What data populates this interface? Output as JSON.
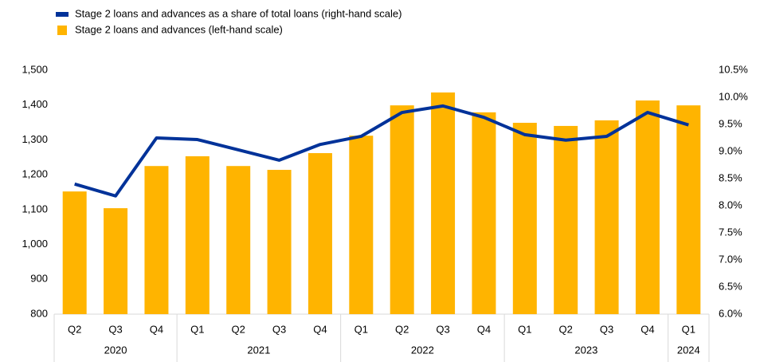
{
  "chart_data": {
    "type": "bar_line",
    "categories": [
      "Q2",
      "Q3",
      "Q4",
      "Q1",
      "Q2",
      "Q3",
      "Q4",
      "Q1",
      "Q2",
      "Q3",
      "Q4",
      "Q1",
      "Q2",
      "Q3",
      "Q4",
      "Q1"
    ],
    "year_groups": [
      {
        "label": "2020",
        "size": 3
      },
      {
        "label": "2021",
        "size": 4
      },
      {
        "label": "2022",
        "size": 4
      },
      {
        "label": "2023",
        "size": 4
      },
      {
        "label": "2024",
        "size": 1
      }
    ],
    "series": [
      {
        "name": "Stage 2 loans and advances as a share of total loans (right-hand scale)",
        "type": "line",
        "axis": "y2",
        "color": "#003299",
        "values": [
          8.4,
          8.18,
          9.25,
          9.22,
          9.03,
          8.84,
          9.13,
          9.28,
          9.72,
          9.84,
          9.63,
          9.31,
          9.21,
          9.28,
          9.72,
          9.49
        ]
      },
      {
        "name": "Stage 2 loans and advances (left-hand scale)",
        "type": "bar",
        "axis": "y",
        "color": "#FFB400",
        "values": [
          1152,
          1104,
          1225,
          1253,
          1225,
          1214,
          1262,
          1312,
          1399,
          1436,
          1379,
          1349,
          1340,
          1356,
          1413,
          1399
        ]
      }
    ],
    "ylim": [
      800,
      1500
    ],
    "yticks": [
      {
        "value": 1500,
        "label": "1,500"
      },
      {
        "value": 1400,
        "label": "1,400"
      },
      {
        "value": 1300,
        "label": "1,300"
      },
      {
        "value": 1200,
        "label": "1,200"
      },
      {
        "value": 1100,
        "label": "1,100"
      },
      {
        "value": 1000,
        "label": "1,000"
      },
      900,
      800
    ],
    "y2lim": [
      6.0,
      10.5
    ],
    "y2ticks": [
      {
        "value": 10.5,
        "label": "10.5%"
      },
      {
        "value": 10.0,
        "label": "10.0%"
      },
      {
        "value": 9.5,
        "label": "9.5%"
      },
      {
        "value": 9.0,
        "label": "9.0%"
      },
      {
        "value": 8.5,
        "label": "8.5%"
      },
      {
        "value": 8.0,
        "label": "8.0%"
      },
      {
        "value": 7.5,
        "label": "7.5%"
      },
      {
        "value": 7.0,
        "label": "7.0%"
      },
      {
        "value": 6.5,
        "label": "6.5%"
      },
      {
        "value": 6.0,
        "label": "6.0%"
      }
    ],
    "grid": false
  }
}
